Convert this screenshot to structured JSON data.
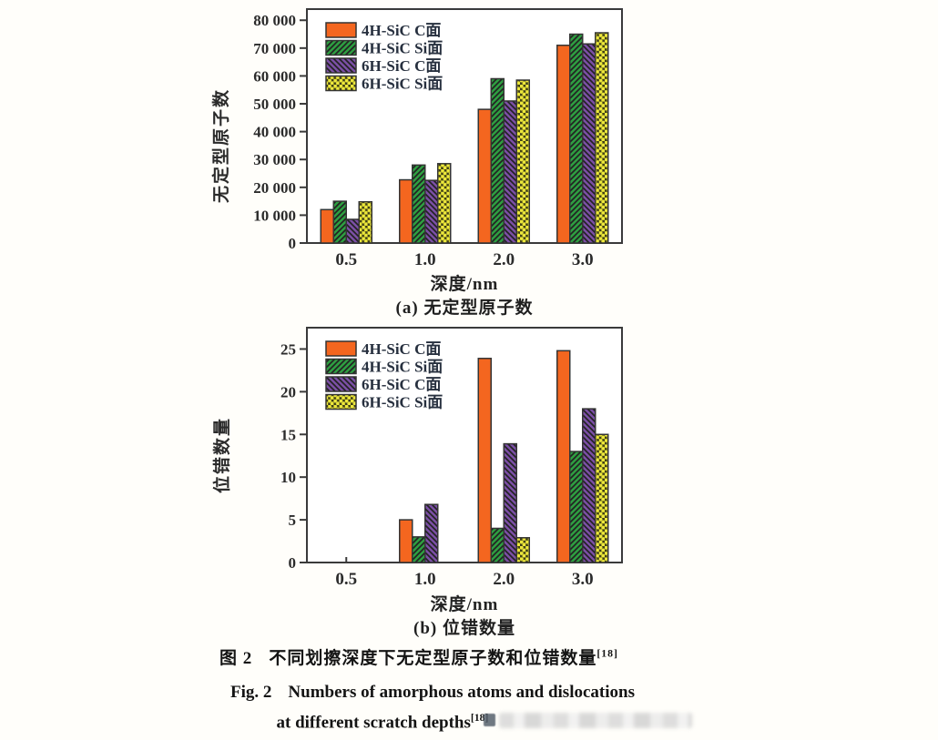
{
  "page": {
    "background": "#fffefa"
  },
  "colors": {
    "axis": "#3a3a3a",
    "tick_text": "#2b2b2b",
    "legend_text": "#27303f",
    "orange": "#F4661F",
    "green": "#2E9E41",
    "purple": "#7B4FA5",
    "yellow": "#EDE83B"
  },
  "captions": {
    "zh_prefix": "图 2",
    "zh_text": "不同划擦深度下无定型原子数和位错数量",
    "zh_ref": "[18]",
    "en_prefix": "Fig. 2",
    "en_line1": "Numbers of amorphous atoms and dislocations",
    "en_line2": "at different scratch depths",
    "en_ref": "[18]"
  },
  "chart_data": [
    {
      "id": "a",
      "type": "bar",
      "title": "(a) 无定型原子数",
      "xlabel": "深度/nm",
      "ylabel": "无定型原子数",
      "categories": [
        "0.5",
        "1.0",
        "2.0",
        "3.0"
      ],
      "series": [
        {
          "name": "4H-SiC C面",
          "color": "#F4661F",
          "pattern": "solid",
          "values": [
            12000,
            22700,
            48000,
            71000
          ]
        },
        {
          "name": "4H-SiC Si面",
          "color": "#2E9E41",
          "pattern": "hatch-forward",
          "values": [
            15000,
            28000,
            59000,
            75000
          ]
        },
        {
          "name": "6H-SiC C面",
          "color": "#7B4FA5",
          "pattern": "hatch-back",
          "values": [
            8500,
            22500,
            51000,
            71500
          ]
        },
        {
          "name": "6H-SiC Si面",
          "color": "#EDE83B",
          "pattern": "dots",
          "values": [
            14800,
            28500,
            58500,
            75500
          ]
        }
      ],
      "ylim": [
        0,
        84000
      ],
      "yticks": [
        {
          "v": 0,
          "label": "0"
        },
        {
          "v": 10000,
          "label": "10 000"
        },
        {
          "v": 20000,
          "label": "20 000"
        },
        {
          "v": 30000,
          "label": "30 000"
        },
        {
          "v": 40000,
          "label": "40 000"
        },
        {
          "v": 50000,
          "label": "50 000"
        },
        {
          "v": 60000,
          "label": "60 000"
        },
        {
          "v": 70000,
          "label": "70 000"
        },
        {
          "v": 80000,
          "label": "80 000"
        }
      ],
      "grid": false,
      "legend_position": "top-left"
    },
    {
      "id": "b",
      "type": "bar",
      "title": "(b) 位错数量",
      "xlabel": "深度/nm",
      "ylabel": "位错数量",
      "categories": [
        "0.5",
        "1.0",
        "2.0",
        "3.0"
      ],
      "series": [
        {
          "name": "4H-SiC C面",
          "color": "#F4661F",
          "pattern": "solid",
          "values": [
            0,
            5,
            23.9,
            24.8
          ]
        },
        {
          "name": "4H-SiC Si面",
          "color": "#2E9E41",
          "pattern": "hatch-forward",
          "values": [
            0,
            3,
            4,
            13
          ]
        },
        {
          "name": "6H-SiC C面",
          "color": "#7B4FA5",
          "pattern": "hatch-back",
          "values": [
            0,
            6.8,
            13.9,
            18
          ]
        },
        {
          "name": "6H-SiC Si面",
          "color": "#EDE83B",
          "pattern": "dots",
          "values": [
            0,
            0,
            2.9,
            15
          ]
        }
      ],
      "ylim": [
        0,
        27.5
      ],
      "yticks": [
        {
          "v": 0,
          "label": "0"
        },
        {
          "v": 5,
          "label": "5"
        },
        {
          "v": 10,
          "label": "10"
        },
        {
          "v": 15,
          "label": "15"
        },
        {
          "v": 20,
          "label": "20"
        },
        {
          "v": 25,
          "label": "25"
        }
      ],
      "grid": false,
      "legend_position": "top-left"
    }
  ]
}
